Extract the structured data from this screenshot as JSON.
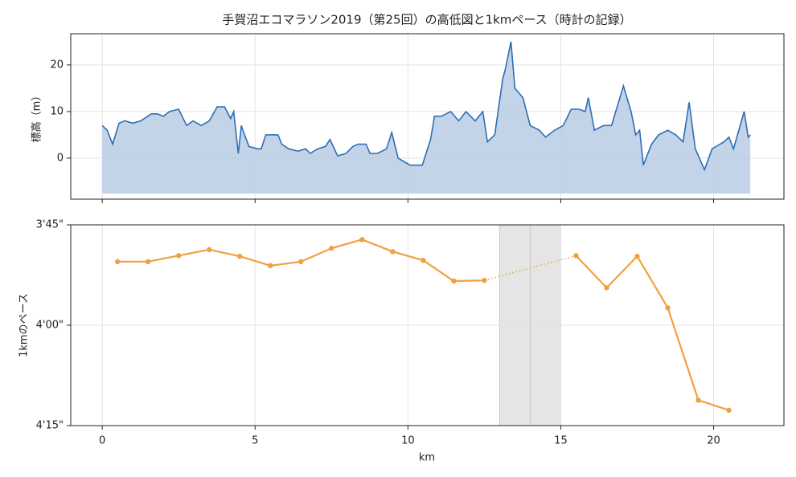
{
  "chart_data": [
    {
      "type": "area",
      "title": "手賀沼エコマラソン2019（第25回）の高低図と1kmペース（時計の記録）",
      "ylabel": "標高（m）",
      "x": [
        0,
        0.16,
        0.34,
        0.55,
        0.74,
        1.0,
        1.26,
        1.6,
        1.8,
        2.0,
        2.2,
        2.5,
        2.76,
        2.97,
        3.24,
        3.5,
        3.76,
        4.0,
        4.2,
        4.3,
        4.45,
        4.55,
        4.6,
        4.8,
        5.08,
        5.2,
        5.35,
        5.75,
        5.87,
        6.1,
        6.4,
        6.66,
        6.8,
        7.05,
        7.3,
        7.45,
        7.7,
        7.97,
        8.2,
        8.37,
        8.63,
        8.76,
        9.0,
        9.3,
        9.47,
        9.68,
        10.07,
        10.47,
        10.74,
        10.87,
        11.1,
        11.4,
        11.66,
        11.9,
        12.2,
        12.45,
        12.6,
        12.84,
        13.1,
        13.2,
        13.37,
        13.5,
        13.76,
        14.0,
        14.3,
        14.5,
        14.8,
        15.08,
        15.34,
        15.6,
        15.8,
        15.9,
        16.1,
        16.4,
        16.66,
        17.05,
        17.3,
        17.45,
        17.58,
        17.7,
        17.97,
        18.2,
        18.5,
        18.76,
        19.0,
        19.2,
        19.4,
        19.7,
        19.95,
        20.34,
        20.5,
        20.65,
        21.0,
        21.13,
        21.2
      ],
      "values": [
        7,
        6,
        3,
        7.5,
        8,
        7.5,
        8,
        9.5,
        9.5,
        9,
        10,
        10.5,
        7,
        8,
        7,
        8,
        11,
        11,
        8.5,
        10,
        1,
        7,
        6,
        2.5,
        2,
        2,
        5,
        5,
        3,
        2,
        1.5,
        2,
        1,
        2,
        2.5,
        4,
        0.5,
        1,
        2.5,
        3,
        3,
        1,
        1,
        2,
        5.5,
        0,
        -1.5,
        -1.5,
        4,
        9,
        9,
        10,
        8,
        10,
        8,
        10,
        3.5,
        5,
        17,
        19.5,
        25,
        15,
        13,
        7,
        6,
        4.5,
        6,
        7,
        10.5,
        10.5,
        10,
        13,
        6,
        7,
        7,
        15.5,
        10,
        5,
        6,
        -1.5,
        3,
        5,
        6,
        5,
        3.5,
        12,
        2,
        -2.5,
        2,
        3.5,
        4.5,
        2,
        10,
        4.5,
        5
      ],
      "color": "#2f6db5",
      "fill_color": "#b8cce4",
      "fill_to": -7.6,
      "xlim": [
        -1.03,
        22.3
      ],
      "xticks": [
        0,
        5,
        10,
        15,
        20
      ],
      "show_xtick_labels": false,
      "ylim": [
        -8.8,
        26.7
      ],
      "yticks": [
        0,
        10,
        20
      ],
      "grid": true
    },
    {
      "type": "line",
      "xlabel": "km",
      "ylabel": "1kmのペース",
      "x": [
        0.5,
        1.5,
        2.5,
        3.5,
        4.5,
        5.5,
        6.5,
        7.5,
        8.5,
        9.5,
        10.5,
        11.5,
        12.5,
        13.5,
        14.5,
        15.5,
        16.5,
        17.5,
        18.5,
        19.5,
        20.5
      ],
      "values": [
        230.5,
        230.5,
        229.6,
        228.7,
        229.7,
        231.1,
        230.5,
        228.5,
        227.2,
        229.0,
        230.3,
        233.4,
        233.3,
        null,
        null,
        229.6,
        234.4,
        229.7,
        237.4,
        251.2,
        252.7
      ],
      "color": "#f0a040",
      "gap_style": "dotted",
      "shaded_spans": [
        [
          13,
          14
        ],
        [
          14,
          15
        ]
      ],
      "xlim": [
        -1.03,
        22.3
      ],
      "xticks": [
        0,
        5,
        10,
        15,
        20
      ],
      "show_xtick_labels": true,
      "ylim": [
        255,
        225
      ],
      "yticks": [
        {
          "value": 225,
          "label": "3'45\""
        },
        {
          "value": 240,
          "label": "4'00\""
        },
        {
          "value": 255,
          "label": "4'15\""
        }
      ],
      "grid": true
    }
  ]
}
